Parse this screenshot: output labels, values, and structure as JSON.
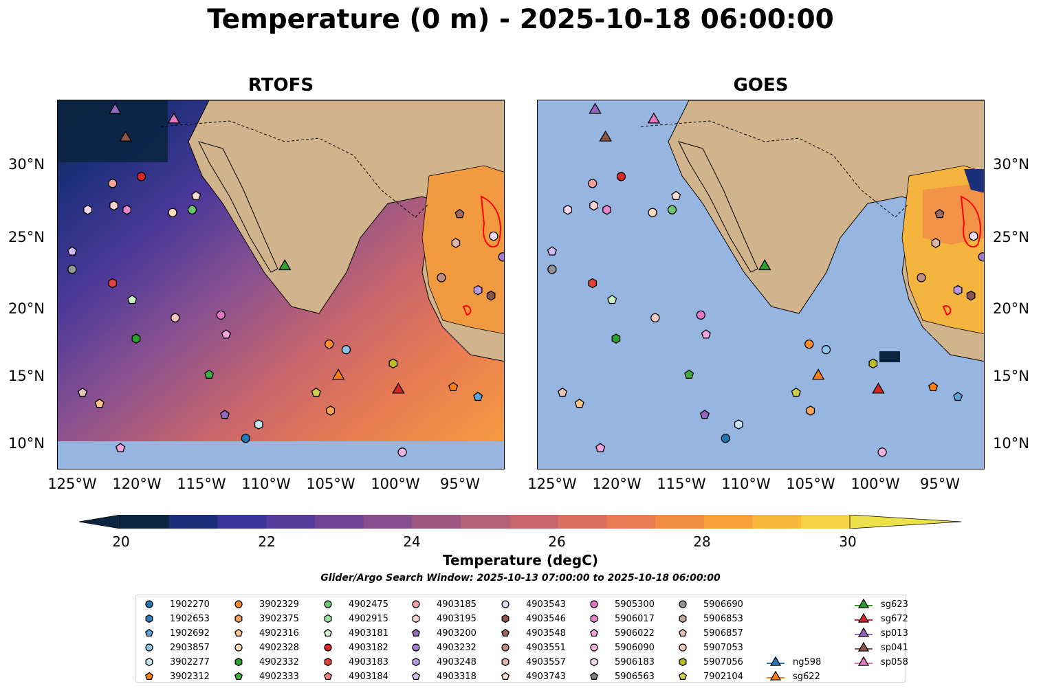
{
  "title": "Temperature (0 m) - 2025-10-18 06:00:00",
  "panels": [
    {
      "title": "RTOFS"
    },
    {
      "title": "GOES"
    }
  ],
  "axes": {
    "lat_labels": [
      "30°N",
      "25°N",
      "20°N",
      "15°N",
      "10°N"
    ],
    "lon_labels": [
      "125°W",
      "120°W",
      "115°W",
      "110°W",
      "105°W",
      "100°W",
      "95°W"
    ]
  },
  "colorbar": {
    "label": "Temperature (degC)",
    "ticks": [
      "20",
      "22",
      "24",
      "26",
      "28",
      "30"
    ],
    "colors": [
      "#0b2541",
      "#1c2f7a",
      "#3a3496",
      "#55399b",
      "#6f4496",
      "#874e8e",
      "#9e5783",
      "#b46079",
      "#c7656c",
      "#d9705f",
      "#e97c52",
      "#f48d44",
      "#f8a13c",
      "#f9b93d",
      "#f6d244"
    ],
    "extend_high_color": "#ece14a",
    "land_color": "#d2b48c",
    "ocean_color": "#97b5e1"
  },
  "window_text": "Glider/Argo Search Window: 2025-10-13 07:00:00 to 2025-10-18 06:00:00",
  "legend": [
    {
      "label": "1902270",
      "marker": "circle",
      "color": "#1f77b4"
    },
    {
      "label": "1902653",
      "marker": "hexagon",
      "color": "#2a7fbe"
    },
    {
      "label": "1902692",
      "marker": "pentagon",
      "color": "#5ea3d8"
    },
    {
      "label": "2903857",
      "marker": "circle",
      "color": "#91c4ea"
    },
    {
      "label": "3902277",
      "marker": "hexagon",
      "color": "#c9e7fb"
    },
    {
      "label": "3902312",
      "marker": "pentagon",
      "color": "#ff7f0e"
    },
    {
      "label": "3902329",
      "marker": "circle",
      "color": "#ff8c2b"
    },
    {
      "label": "3902375",
      "marker": "hexagon",
      "color": "#ffa45a"
    },
    {
      "label": "4902316",
      "marker": "pentagon",
      "color": "#ffc58e"
    },
    {
      "label": "4902328",
      "marker": "circle",
      "color": "#ffdcbc"
    },
    {
      "label": "4902332",
      "marker": "hexagon",
      "color": "#2ca02c"
    },
    {
      "label": "4902333",
      "marker": "pentagon",
      "color": "#3fae3f"
    },
    {
      "label": "4902475",
      "marker": "circle",
      "color": "#6cc86c"
    },
    {
      "label": "4902915",
      "marker": "hexagon",
      "color": "#a0e3a0"
    },
    {
      "label": "4903181",
      "marker": "pentagon",
      "color": "#cdf5c8"
    },
    {
      "label": "4903182",
      "marker": "circle",
      "color": "#d62728"
    },
    {
      "label": "4903183",
      "marker": "hexagon",
      "color": "#e2423b"
    },
    {
      "label": "4903184",
      "marker": "pentagon",
      "color": "#f08174"
    },
    {
      "label": "4903185",
      "marker": "circle",
      "color": "#f5a09a"
    },
    {
      "label": "4903195",
      "marker": "hexagon",
      "color": "#fbd3cf"
    },
    {
      "label": "4903200",
      "marker": "pentagon",
      "color": "#9467bd"
    },
    {
      "label": "4903232",
      "marker": "circle",
      "color": "#a27ad0"
    },
    {
      "label": "4903248",
      "marker": "hexagon",
      "color": "#b898e3"
    },
    {
      "label": "4903318",
      "marker": "pentagon",
      "color": "#d2bdf3"
    },
    {
      "label": "4903543",
      "marker": "circle",
      "color": "#e8dafc"
    },
    {
      "label": "4903546",
      "marker": "hexagon",
      "color": "#8c564b"
    },
    {
      "label": "4903548",
      "marker": "pentagon",
      "color": "#9c6a5e"
    },
    {
      "label": "4903551",
      "marker": "circle",
      "color": "#c08e80"
    },
    {
      "label": "4903557",
      "marker": "hexagon",
      "color": "#dfb5a8"
    },
    {
      "label": "4903743",
      "marker": "pentagon",
      "color": "#f7dccf"
    },
    {
      "label": "5905300",
      "marker": "circle",
      "color": "#e377c2"
    },
    {
      "label": "5906017",
      "marker": "hexagon",
      "color": "#ea86cc"
    },
    {
      "label": "5906022",
      "marker": "pentagon",
      "color": "#f3a6dc"
    },
    {
      "label": "5906090",
      "marker": "circle",
      "color": "#f8b5e2"
    },
    {
      "label": "5906183",
      "marker": "hexagon",
      "color": "#fcd7f0"
    },
    {
      "label": "5906563",
      "marker": "pentagon",
      "color": "#7f7f7f"
    },
    {
      "label": "5906690",
      "marker": "circle",
      "color": "#969696"
    },
    {
      "label": "5906853",
      "marker": "hexagon",
      "color": "#bfa89e"
    },
    {
      "label": "5906857",
      "marker": "pentagon",
      "color": "#e4c5b8"
    },
    {
      "label": "5907053",
      "marker": "circle",
      "color": "#f7c9c0"
    },
    {
      "label": "5907056",
      "marker": "hexagon",
      "color": "#bcbd22"
    },
    {
      "label": "7902104",
      "marker": "pentagon",
      "color": "#cfcf4d"
    },
    {
      "label": "ng598",
      "marker": "triangle-line",
      "color": "#1f77b4"
    },
    {
      "label": "sg622",
      "marker": "triangle-line",
      "color": "#ff7f0e"
    },
    {
      "label": "sg623",
      "marker": "triangle-line",
      "color": "#2ca02c"
    },
    {
      "label": "sg672",
      "marker": "triangle-line",
      "color": "#d62728"
    },
    {
      "label": "sp013",
      "marker": "triangle-line",
      "color": "#9467bd"
    },
    {
      "label": "sp041",
      "marker": "triangle-line",
      "color": "#8c564b"
    },
    {
      "label": "sp058",
      "marker": "triangle-line",
      "color": "#e377c2"
    }
  ],
  "map_markers": [
    {
      "label": "sp013",
      "marker": "triangle",
      "color": "#9467bd",
      "lon": -122.0,
      "lat": 33.9
    },
    {
      "label": "sp058",
      "marker": "triangle",
      "color": "#e377c2",
      "lon": -117.5,
      "lat": 33.2
    },
    {
      "label": "sp041",
      "marker": "triangle",
      "color": "#8c564b",
      "lon": -121.2,
      "lat": 31.9
    },
    {
      "label": "4903185",
      "marker": "circle",
      "color": "#f5a09a",
      "lon": -122.2,
      "lat": 28.6
    },
    {
      "label": "4903182",
      "marker": "circle",
      "color": "#d62728",
      "lon": -120.0,
      "lat": 29.1
    },
    {
      "label": "5906183",
      "marker": "hexagon",
      "color": "#fcd7f0",
      "lon": -124.1,
      "lat": 26.7
    },
    {
      "label": "4903195",
      "marker": "hexagon",
      "color": "#fbd3cf",
      "lon": -122.1,
      "lat": 27.0
    },
    {
      "label": "5906017",
      "marker": "hexagon",
      "color": "#ea86cc",
      "lon": -121.1,
      "lat": 26.7
    },
    {
      "label": "4902328",
      "marker": "circle",
      "color": "#ffdcbc",
      "lon": -117.6,
      "lat": 26.5
    },
    {
      "label": "4902475",
      "marker": "circle",
      "color": "#6cc86c",
      "lon": -116.1,
      "lat": 26.7
    },
    {
      "label": "4903743",
      "marker": "pentagon",
      "color": "#f7dccf",
      "lon": -115.8,
      "lat": 27.7
    },
    {
      "label": "4903318",
      "marker": "pentagon",
      "color": "#d2bdf3",
      "lon": -125.3,
      "lat": 23.7
    },
    {
      "label": "5906690",
      "marker": "circle",
      "color": "#969696",
      "lon": -125.3,
      "lat": 22.4
    },
    {
      "label": "4903183",
      "marker": "hexagon",
      "color": "#e2423b",
      "lon": -122.2,
      "lat": 21.4
    },
    {
      "label": "4903181",
      "marker": "pentagon",
      "color": "#cdf5c8",
      "lon": -120.7,
      "lat": 20.2
    },
    {
      "label": "4902332",
      "marker": "hexagon",
      "color": "#2ca02c",
      "lon": -120.4,
      "lat": 17.4
    },
    {
      "label": "5907053",
      "marker": "circle",
      "color": "#f7c9c0",
      "lon": -117.4,
      "lat": 18.9
    },
    {
      "label": "5905300",
      "marker": "circle",
      "color": "#e377c2",
      "lon": -113.9,
      "lat": 19.1
    },
    {
      "label": "5906022",
      "marker": "pentagon",
      "color": "#f3a6dc",
      "lon": -113.5,
      "lat": 17.7
    },
    {
      "label": "sg623",
      "marker": "triangle",
      "color": "#2ca02c",
      "lon": -109.0,
      "lat": 22.6
    },
    {
      "label": "4902333",
      "marker": "pentagon",
      "color": "#3fae3f",
      "lon": -114.8,
      "lat": 14.8
    },
    {
      "label": "4903200",
      "marker": "pentagon",
      "color": "#9467bd",
      "lon": -113.6,
      "lat": 11.9
    },
    {
      "label": "3902277",
      "marker": "hexagon",
      "color": "#c9e7fb",
      "lon": -111.0,
      "lat": 11.2
    },
    {
      "label": "1902270",
      "marker": "circle",
      "color": "#1f77b4",
      "lon": -112.0,
      "lat": 10.2
    },
    {
      "label": "5906857",
      "marker": "pentagon",
      "color": "#e4c5b8",
      "lon": -124.5,
      "lat": 13.5
    },
    {
      "label": "4902316",
      "marker": "pentagon",
      "color": "#ffc58e",
      "lon": -123.2,
      "lat": 12.7
    },
    {
      "label": "5906022",
      "marker": "pentagon",
      "color": "#f3a6dc",
      "lon": -121.6,
      "lat": 9.5
    },
    {
      "label": "3902329",
      "marker": "circle",
      "color": "#ff8c2b",
      "lon": -105.6,
      "lat": 17.0
    },
    {
      "label": "2903857",
      "marker": "circle",
      "color": "#91c4ea",
      "lon": -104.3,
      "lat": 16.6
    },
    {
      "label": "7902104",
      "marker": "pentagon",
      "color": "#cfcf4d",
      "lon": -106.6,
      "lat": 13.5
    },
    {
      "label": "sg622",
      "marker": "triangle",
      "color": "#ff7f0e",
      "lon": -104.9,
      "lat": 14.7
    },
    {
      "label": "3902375",
      "marker": "hexagon",
      "color": "#ffa45a",
      "lon": -105.5,
      "lat": 12.2
    },
    {
      "label": "5907056",
      "marker": "hexagon",
      "color": "#bcbd22",
      "lon": -100.7,
      "lat": 15.6
    },
    {
      "label": "sg672",
      "marker": "triangle",
      "color": "#d62728",
      "lon": -100.3,
      "lat": 13.7
    },
    {
      "label": "3902312",
      "marker": "pentagon",
      "color": "#ff7f0e",
      "lon": -96.1,
      "lat": 13.9
    },
    {
      "label": "1902692",
      "marker": "pentagon",
      "color": "#5ea3d8",
      "lon": -94.2,
      "lat": 13.2
    },
    {
      "label": "5906090",
      "marker": "circle",
      "color": "#f8b5e2",
      "lon": -100.0,
      "lat": 9.2
    },
    {
      "label": "4903551",
      "marker": "circle",
      "color": "#c08e80",
      "lon": -97.0,
      "lat": 21.8
    },
    {
      "label": "4903248",
      "marker": "hexagon",
      "color": "#b898e3",
      "lon": -94.2,
      "lat": 20.9
    },
    {
      "label": "4903546",
      "marker": "hexagon",
      "color": "#8c564b",
      "lon": -93.2,
      "lat": 20.5
    },
    {
      "label": "4903557",
      "marker": "hexagon",
      "color": "#dfb5a8",
      "lon": -95.9,
      "lat": 24.3
    },
    {
      "label": "4903548",
      "marker": "pentagon",
      "color": "#9c6a5e",
      "lon": -95.6,
      "lat": 26.4
    },
    {
      "label": "4903543",
      "marker": "circle",
      "color": "#e8dafc",
      "lon": -93.0,
      "lat": 24.8
    },
    {
      "label": "4903232",
      "marker": "circle",
      "color": "#a27ad0",
      "lon": -92.3,
      "lat": 23.3
    }
  ]
}
